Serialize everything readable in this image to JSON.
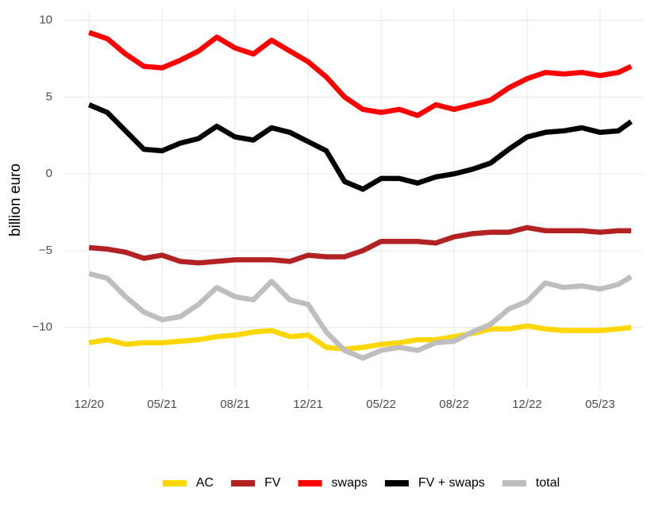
{
  "chart_data": {
    "type": "line",
    "y_label": "billion euro",
    "x": [
      0,
      1,
      2,
      3,
      4,
      5,
      6,
      7,
      8,
      9,
      10,
      11,
      12,
      13,
      14,
      15,
      16,
      17,
      18,
      19,
      20,
      21,
      22,
      23,
      24,
      25,
      26,
      27,
      28,
      29,
      29.7
    ],
    "xlim": [
      -1.4,
      30.35
    ],
    "xticks": [
      {
        "value": 0,
        "label": "12/20"
      },
      {
        "value": 4,
        "label": "05/21"
      },
      {
        "value": 8,
        "label": "08/21"
      },
      {
        "value": 12,
        "label": "12/21"
      },
      {
        "value": 16,
        "label": "05/22"
      },
      {
        "value": 20,
        "label": "08/22"
      },
      {
        "value": 24,
        "label": "12/22"
      },
      {
        "value": 28,
        "label": "05/23"
      }
    ],
    "ylim": [
      -14,
      10.7
    ],
    "yticks": [
      {
        "value": -10,
        "label": "−10"
      },
      {
        "value": -5,
        "label": "−5"
      },
      0,
      5,
      10
    ],
    "grid": true,
    "legend": "bottom",
    "series": [
      {
        "name": "AC",
        "color": "#FFD700",
        "values": [
          -11.0,
          -10.8,
          -11.1,
          -11.0,
          -11.0,
          -10.9,
          -10.8,
          -10.6,
          -10.5,
          -10.3,
          -10.2,
          -10.6,
          -10.5,
          -11.3,
          -11.4,
          -11.3,
          -11.1,
          -11.0,
          -10.8,
          -10.8,
          -10.6,
          -10.4,
          -10.1,
          -10.1,
          -9.9,
          -10.1,
          -10.2,
          -10.2,
          -10.2,
          -10.1,
          -10.0
        ]
      },
      {
        "name": "FV",
        "color": "#B22222",
        "values": [
          -4.8,
          -4.9,
          -5.1,
          -5.5,
          -5.3,
          -5.7,
          -5.8,
          -5.7,
          -5.6,
          -5.6,
          -5.6,
          -5.7,
          -5.3,
          -5.4,
          -5.4,
          -5.0,
          -4.4,
          -4.4,
          -4.4,
          -4.5,
          -4.1,
          -3.9,
          -3.8,
          -3.8,
          -3.5,
          -3.7,
          -3.7,
          -3.7,
          -3.8,
          -3.7,
          -3.7
        ]
      },
      {
        "name": "swaps",
        "color": "#FF0000",
        "values": [
          9.2,
          8.8,
          7.8,
          7.0,
          6.9,
          7.4,
          8.0,
          8.9,
          8.2,
          7.8,
          8.7,
          8.0,
          7.3,
          6.3,
          5.0,
          4.2,
          4.0,
          4.2,
          3.8,
          4.5,
          4.2,
          4.5,
          4.8,
          5.6,
          6.2,
          6.6,
          6.5,
          6.6,
          6.4,
          6.6,
          7.0
        ]
      },
      {
        "name": "FV + swaps",
        "color": "#000000",
        "values": [
          4.5,
          4.0,
          2.8,
          1.6,
          1.5,
          2.0,
          2.3,
          3.1,
          2.4,
          2.2,
          3.0,
          2.7,
          2.1,
          1.5,
          -0.5,
          -1.0,
          -0.3,
          -0.3,
          -0.6,
          -0.2,
          0.0,
          0.3,
          0.7,
          1.6,
          2.4,
          2.7,
          2.8,
          3.0,
          2.7,
          2.8,
          3.4
        ]
      },
      {
        "name": "total",
        "color": "#BEBEBE",
        "values": [
          -6.5,
          -6.8,
          -8.0,
          -9.0,
          -9.5,
          -9.3,
          -8.5,
          -7.4,
          -8.0,
          -8.2,
          -7.0,
          -8.2,
          -8.5,
          -10.3,
          -11.5,
          -12.0,
          -11.5,
          -11.3,
          -11.5,
          -11.0,
          -10.9,
          -10.3,
          -9.8,
          -8.8,
          -8.3,
          -7.1,
          -7.4,
          -7.3,
          -7.5,
          -7.2,
          -6.7
        ]
      }
    ]
  }
}
